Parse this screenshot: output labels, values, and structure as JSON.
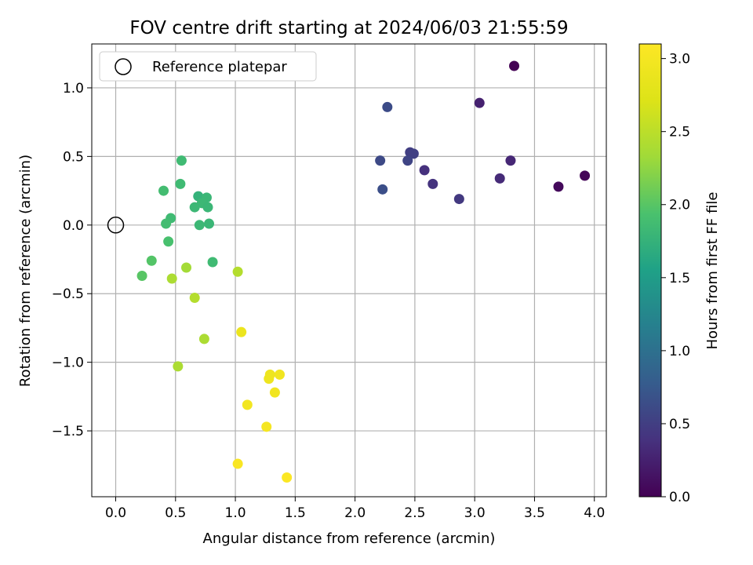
{
  "chart_data": {
    "type": "scatter",
    "title": "FOV centre drift starting at 2024/06/03 21:55:59",
    "xlabel": "Angular distance from reference (arcmin)",
    "ylabel": "Rotation from reference (arcmin)",
    "xlim": [
      -0.2,
      4.1
    ],
    "ylim": [
      -1.98,
      1.32
    ],
    "xticks": [
      0.0,
      0.5,
      1.0,
      1.5,
      2.0,
      2.5,
      3.0,
      3.5,
      4.0
    ],
    "xtick_labels": [
      "0.0",
      "0.5",
      "1.0",
      "1.5",
      "2.0",
      "2.5",
      "3.0",
      "3.5",
      "4.0"
    ],
    "yticks": [
      -1.5,
      -1.0,
      -0.5,
      0.0,
      0.5,
      1.0
    ],
    "ytick_labels": [
      "−1.5",
      "−1.0",
      "−0.5",
      "0.0",
      "0.5",
      "1.0"
    ],
    "grid": true,
    "legend": {
      "position": "top-left",
      "entries": [
        "Reference platepar"
      ]
    },
    "reference_point": {
      "x": 0.0,
      "y": 0.0,
      "label": "Reference platepar"
    },
    "colorbar": {
      "label": "Hours from first FF file",
      "colormap": "viridis",
      "range": [
        0.0,
        3.1
      ],
      "ticks": [
        0.0,
        0.5,
        1.0,
        1.5,
        2.0,
        2.5,
        3.0
      ],
      "tick_labels": [
        "0.0",
        "0.5",
        "1.0",
        "1.5",
        "2.0",
        "2.5",
        "3.0"
      ]
    },
    "points": [
      {
        "x": 3.33,
        "y": 1.16,
        "c": 0.0
      },
      {
        "x": 3.92,
        "y": 0.36,
        "c": 0.03
      },
      {
        "x": 3.7,
        "y": 0.28,
        "c": 0.06
      },
      {
        "x": 3.04,
        "y": 0.89,
        "c": 0.25
      },
      {
        "x": 3.3,
        "y": 0.47,
        "c": 0.3
      },
      {
        "x": 3.21,
        "y": 0.34,
        "c": 0.33
      },
      {
        "x": 2.58,
        "y": 0.4,
        "c": 0.38
      },
      {
        "x": 2.65,
        "y": 0.3,
        "c": 0.4
      },
      {
        "x": 2.87,
        "y": 0.19,
        "c": 0.45
      },
      {
        "x": 2.46,
        "y": 0.53,
        "c": 0.5
      },
      {
        "x": 2.49,
        "y": 0.52,
        "c": 0.52
      },
      {
        "x": 2.44,
        "y": 0.47,
        "c": 0.55
      },
      {
        "x": 2.21,
        "y": 0.47,
        "c": 0.6
      },
      {
        "x": 2.27,
        "y": 0.86,
        "c": 0.62
      },
      {
        "x": 2.23,
        "y": 0.26,
        "c": 0.65
      },
      {
        "x": 0.55,
        "y": 0.47,
        "c": 1.85
      },
      {
        "x": 0.54,
        "y": 0.3,
        "c": 1.85
      },
      {
        "x": 0.4,
        "y": 0.25,
        "c": 1.88
      },
      {
        "x": 0.69,
        "y": 0.21,
        "c": 1.75
      },
      {
        "x": 0.76,
        "y": 0.2,
        "c": 1.8
      },
      {
        "x": 0.72,
        "y": 0.16,
        "c": 1.82
      },
      {
        "x": 0.66,
        "y": 0.13,
        "c": 1.82
      },
      {
        "x": 0.77,
        "y": 0.13,
        "c": 1.8
      },
      {
        "x": 0.46,
        "y": 0.05,
        "c": 1.85
      },
      {
        "x": 0.42,
        "y": 0.01,
        "c": 1.88
      },
      {
        "x": 0.7,
        "y": 0.0,
        "c": 1.82
      },
      {
        "x": 0.78,
        "y": 0.01,
        "c": 1.8
      },
      {
        "x": 0.44,
        "y": -0.12,
        "c": 1.92
      },
      {
        "x": 0.81,
        "y": -0.27,
        "c": 1.85
      },
      {
        "x": 0.3,
        "y": -0.26,
        "c": 1.98
      },
      {
        "x": 0.22,
        "y": -0.37,
        "c": 2.0
      },
      {
        "x": 0.59,
        "y": -0.31,
        "c": 2.35
      },
      {
        "x": 0.47,
        "y": -0.39,
        "c": 2.4
      },
      {
        "x": 1.02,
        "y": -0.34,
        "c": 2.45
      },
      {
        "x": 0.66,
        "y": -0.53,
        "c": 2.45
      },
      {
        "x": 0.74,
        "y": -0.83,
        "c": 2.4
      },
      {
        "x": 0.52,
        "y": -1.03,
        "c": 2.4
      },
      {
        "x": 1.05,
        "y": -0.78,
        "c": 2.9
      },
      {
        "x": 1.29,
        "y": -1.09,
        "c": 2.92
      },
      {
        "x": 1.37,
        "y": -1.09,
        "c": 2.95
      },
      {
        "x": 1.28,
        "y": -1.12,
        "c": 2.92
      },
      {
        "x": 1.33,
        "y": -1.22,
        "c": 2.95
      },
      {
        "x": 1.1,
        "y": -1.31,
        "c": 2.97
      },
      {
        "x": 1.26,
        "y": -1.47,
        "c": 3.0
      },
      {
        "x": 1.02,
        "y": -1.74,
        "c": 3.05
      },
      {
        "x": 1.43,
        "y": -1.84,
        "c": 3.08
      }
    ]
  }
}
